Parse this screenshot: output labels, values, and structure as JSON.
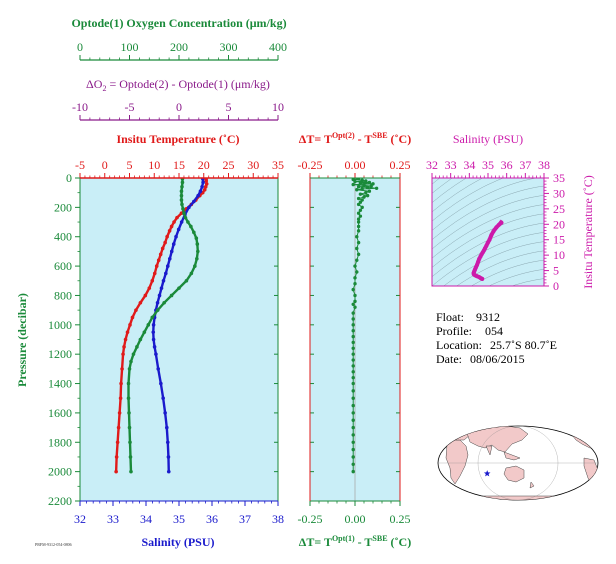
{
  "colors": {
    "oxygen": "#1a8a3a",
    "delta_o2": "#8a1a8a",
    "temperature": "#e01a1a",
    "salinity": "#1a1acc",
    "ts_salinity": "#cc1aaa",
    "panel_bg": "#c9eef7",
    "pressure_axis": "#1a8a3a"
  },
  "labels": {
    "oxygen_axis": "Optode(1) Oxygen Concentration (μm/kg)",
    "delta_o2_axis": "ΔO",
    "delta_o2_sub": "2",
    "delta_o2_rest": " = Optode(2) - Optode(1)    (μm/kg)",
    "temperature_axis": "Insitu Temperature (˚C)",
    "salinity_axis_bottom": "Salinity (PSU)",
    "pressure_axis": "Pressure (decibar)",
    "dt_top_prefix": "ΔT= T",
    "dt_top_sup1": "Opt(2)",
    "dt_top_mid": " - T",
    "dt_top_sup2": "SBE",
    "dt_top_suffix": " (˚C)",
    "dt_bottom_prefix": "ΔT= T",
    "dt_bottom_sup1": "Opt(1)",
    "dt_bottom_mid": " - T",
    "dt_bottom_sup2": "SBE",
    "dt_bottom_suffix": " (˚C)",
    "ts_salinity_axis": "Salinity (PSU)",
    "ts_temperature_axis": "Insitu Temperature (˚C)",
    "tiny_code": "PRFM-9312-054-0806"
  },
  "info": {
    "float_label": "Float:",
    "float_value": "9312",
    "profile_label": "Profile:",
    "profile_value": "054",
    "location_label": "Location:",
    "location_value": "25.7˚S  80.7˚E",
    "date_label": "Date:",
    "date_value": "08/06/2015"
  },
  "chart_data": [
    {
      "type": "line",
      "panel": "profile",
      "pressure_axis": {
        "ylim": [
          0,
          2200
        ],
        "ticks": [
          "0",
          "200",
          "400",
          "600",
          "800",
          "1000",
          "1200",
          "1400",
          "1600",
          "1800",
          "2000",
          "2200"
        ]
      },
      "oxygen_axis": {
        "xlim": [
          0,
          400
        ],
        "ticks": [
          "0",
          "100",
          "200",
          "300",
          "400"
        ]
      },
      "delta_o2_axis": {
        "xlim": [
          -10,
          10
        ],
        "ticks": [
          "-10",
          "-5",
          "0",
          "5",
          "10"
        ]
      },
      "temperature_axis": {
        "xlim": [
          -5,
          35
        ],
        "ticks": [
          "-5",
          "0",
          "5",
          "10",
          "15",
          "20",
          "25",
          "30",
          "35"
        ]
      },
      "salinity_axis": {
        "xlim": [
          32,
          38
        ],
        "ticks": [
          "32",
          "33",
          "34",
          "35",
          "36",
          "37",
          "38"
        ]
      },
      "series": [
        {
          "key": "temperature",
          "points": [
            [
              20.5,
              5
            ],
            [
              20.5,
              20
            ],
            [
              20.6,
              40
            ],
            [
              20.4,
              60
            ],
            [
              20.2,
              80
            ],
            [
              19.8,
              100
            ],
            [
              19.2,
              120
            ],
            [
              18.4,
              150
            ],
            [
              17.5,
              180
            ],
            [
              16.5,
              210
            ],
            [
              15.5,
              240
            ],
            [
              14.6,
              270
            ],
            [
              14.0,
              300
            ],
            [
              13.5,
              330
            ],
            [
              13.1,
              360
            ],
            [
              12.6,
              400
            ],
            [
              12.2,
              440
            ],
            [
              11.7,
              480
            ],
            [
              11.3,
              520
            ],
            [
              10.9,
              560
            ],
            [
              10.5,
              600
            ],
            [
              10.1,
              650
            ],
            [
              9.6,
              700
            ],
            [
              9.0,
              750
            ],
            [
              8.2,
              800
            ],
            [
              7.2,
              850
            ],
            [
              6.3,
              900
            ],
            [
              5.6,
              950
            ],
            [
              5.1,
              1000
            ],
            [
              4.6,
              1050
            ],
            [
              4.2,
              1100
            ],
            [
              3.9,
              1150
            ],
            [
              3.7,
              1200
            ],
            [
              3.5,
              1300
            ],
            [
              3.3,
              1400
            ],
            [
              3.2,
              1500
            ],
            [
              3.0,
              1600
            ],
            [
              2.8,
              1700
            ],
            [
              2.6,
              1800
            ],
            [
              2.4,
              1900
            ],
            [
              2.3,
              2000
            ]
          ]
        },
        {
          "key": "salinity",
          "points": [
            [
              35.72,
              5
            ],
            [
              35.73,
              30
            ],
            [
              35.7,
              60
            ],
            [
              35.65,
              90
            ],
            [
              35.58,
              120
            ],
            [
              35.45,
              160
            ],
            [
              35.3,
              200
            ],
            [
              35.18,
              250
            ],
            [
              35.08,
              300
            ],
            [
              34.99,
              350
            ],
            [
              34.91,
              400
            ],
            [
              34.84,
              450
            ],
            [
              34.78,
              500
            ],
            [
              34.72,
              550
            ],
            [
              34.66,
              600
            ],
            [
              34.6,
              650
            ],
            [
              34.53,
              700
            ],
            [
              34.47,
              750
            ],
            [
              34.41,
              800
            ],
            [
              34.35,
              850
            ],
            [
              34.3,
              900
            ],
            [
              34.26,
              950
            ],
            [
              34.23,
              1000
            ],
            [
              34.22,
              1050
            ],
            [
              34.23,
              1100
            ],
            [
              34.26,
              1150
            ],
            [
              34.3,
              1200
            ],
            [
              34.37,
              1300
            ],
            [
              34.45,
              1400
            ],
            [
              34.52,
              1500
            ],
            [
              34.58,
              1600
            ],
            [
              34.63,
              1700
            ],
            [
              34.66,
              1800
            ],
            [
              34.68,
              1900
            ],
            [
              34.69,
              2000
            ]
          ]
        },
        {
          "key": "oxygen",
          "points": [
            [
              207,
              5
            ],
            [
              207,
              30
            ],
            [
              206,
              60
            ],
            [
              205,
              90
            ],
            [
              205,
              120
            ],
            [
              205,
              150
            ],
            [
              206,
              180
            ],
            [
              208,
              210
            ],
            [
              210,
              240
            ],
            [
              213,
              270
            ],
            [
              218,
              300
            ],
            [
              224,
              330
            ],
            [
              230,
              370
            ],
            [
              235,
              410
            ],
            [
              237,
              450
            ],
            [
              238,
              500
            ],
            [
              236,
              550
            ],
            [
              232,
              600
            ],
            [
              225,
              650
            ],
            [
              215,
              700
            ],
            [
              200,
              750
            ],
            [
              185,
              800
            ],
            [
              170,
              850
            ],
            [
              157,
              900
            ],
            [
              146,
              950
            ],
            [
              138,
              1000
            ],
            [
              130,
              1050
            ],
            [
              122,
              1100
            ],
            [
              115,
              1150
            ],
            [
              108,
              1200
            ],
            [
              103,
              1250
            ],
            [
              100,
              1300
            ],
            [
              98,
              1400
            ],
            [
              98,
              1500
            ],
            [
              99,
              1600
            ],
            [
              100,
              1700
            ],
            [
              101,
              1800
            ],
            [
              102,
              1900
            ],
            [
              103,
              2000
            ]
          ]
        }
      ]
    },
    {
      "type": "scatter",
      "panel": "delta_t",
      "ylim": [
        0,
        2200
      ],
      "top_axis": {
        "xlim": [
          -0.25,
          0.25
        ],
        "ticks": [
          "-0.25",
          "0.00",
          "0.25"
        ]
      },
      "bottom_axis": {
        "xlim": [
          -0.25,
          0.25
        ],
        "ticks": [
          "-0.25",
          "0.00",
          "0.25"
        ]
      },
      "points": [
        [
          0.02,
          5
        ],
        [
          -0.01,
          10
        ],
        [
          0.04,
          15
        ],
        [
          0.06,
          20
        ],
        [
          0.0,
          25
        ],
        [
          0.08,
          30
        ],
        [
          0.03,
          35
        ],
        [
          0.1,
          40
        ],
        [
          -0.01,
          45
        ],
        [
          0.05,
          50
        ],
        [
          0.09,
          55
        ],
        [
          0.02,
          60
        ],
        [
          0.07,
          65
        ],
        [
          0.12,
          70
        ],
        [
          0.04,
          75
        ],
        [
          0.01,
          80
        ],
        [
          0.08,
          90
        ],
        [
          0.06,
          100
        ],
        [
          0.03,
          110
        ],
        [
          0.07,
          120
        ],
        [
          0.05,
          130
        ],
        [
          0.02,
          140
        ],
        [
          0.04,
          150
        ],
        [
          0.03,
          165
        ],
        [
          0.02,
          180
        ],
        [
          0.04,
          200
        ],
        [
          0.03,
          220
        ],
        [
          0.02,
          240
        ],
        [
          0.03,
          260
        ],
        [
          0.02,
          280
        ],
        [
          0.02,
          300
        ],
        [
          0.02,
          330
        ],
        [
          0.02,
          360
        ],
        [
          0.01,
          400
        ],
        [
          0.02,
          440
        ],
        [
          0.01,
          480
        ],
        [
          0.02,
          520
        ],
        [
          0.01,
          560
        ],
        [
          0.0,
          600
        ],
        [
          0.01,
          640
        ],
        [
          0.0,
          680
        ],
        [
          0.0,
          720
        ],
        [
          -0.01,
          760
        ],
        [
          0.0,
          800
        ],
        [
          0.0,
          840
        ],
        [
          -0.01,
          860
        ],
        [
          0.0,
          880
        ],
        [
          -0.01,
          920
        ],
        [
          -0.01,
          960
        ],
        [
          -0.01,
          1000
        ],
        [
          -0.01,
          1040
        ],
        [
          -0.01,
          1080
        ],
        [
          -0.01,
          1120
        ],
        [
          -0.01,
          1160
        ],
        [
          -0.01,
          1200
        ],
        [
          -0.01,
          1240
        ],
        [
          -0.01,
          1280
        ],
        [
          -0.01,
          1320
        ],
        [
          -0.01,
          1360
        ],
        [
          -0.01,
          1400
        ],
        [
          -0.01,
          1450
        ],
        [
          -0.01,
          1500
        ],
        [
          -0.01,
          1550
        ],
        [
          -0.01,
          1600
        ],
        [
          -0.01,
          1650
        ],
        [
          -0.01,
          1700
        ],
        [
          -0.01,
          1750
        ],
        [
          -0.01,
          1800
        ],
        [
          -0.01,
          1850
        ],
        [
          -0.01,
          1900
        ],
        [
          -0.01,
          1950
        ],
        [
          -0.01,
          2000
        ]
      ]
    },
    {
      "type": "scatter",
      "panel": "ts_diagram",
      "salinity_axis": {
        "xlim": [
          32,
          38
        ],
        "ticks": [
          "32",
          "33",
          "34",
          "35",
          "36",
          "37",
          "38"
        ]
      },
      "temperature_axis": {
        "ylim": [
          0,
          35
        ],
        "ticks": [
          "0",
          "5",
          "10",
          "15",
          "20",
          "25",
          "30",
          "35"
        ]
      },
      "points": [
        [
          35.72,
          20.5
        ],
        [
          35.7,
          20.6
        ],
        [
          35.65,
          20.2
        ],
        [
          35.58,
          19.8
        ],
        [
          35.45,
          19.0
        ],
        [
          35.3,
          17.8
        ],
        [
          35.18,
          16.5
        ],
        [
          35.08,
          15.0
        ],
        [
          34.99,
          14.0
        ],
        [
          34.91,
          13.0
        ],
        [
          34.84,
          12.2
        ],
        [
          34.78,
          11.5
        ],
        [
          34.72,
          10.9
        ],
        [
          34.66,
          10.3
        ],
        [
          34.6,
          9.6
        ],
        [
          34.53,
          8.8
        ],
        [
          34.47,
          7.8
        ],
        [
          34.41,
          6.8
        ],
        [
          34.35,
          6.0
        ],
        [
          34.3,
          5.3
        ],
        [
          34.26,
          4.7
        ],
        [
          34.23,
          4.2
        ],
        [
          34.24,
          3.8
        ],
        [
          34.3,
          3.5
        ],
        [
          34.4,
          3.2
        ],
        [
          34.52,
          2.9
        ],
        [
          34.6,
          2.6
        ],
        [
          34.66,
          2.4
        ],
        [
          34.69,
          2.3
        ]
      ]
    }
  ],
  "map": {
    "marker_lon": 80.7,
    "marker_lat": -25.7
  }
}
